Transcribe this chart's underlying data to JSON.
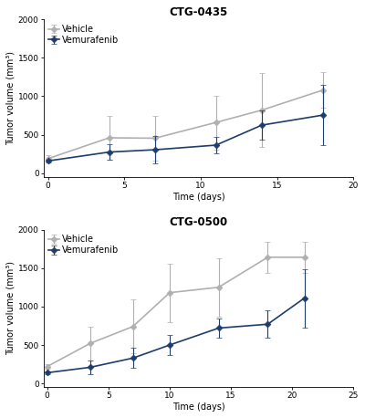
{
  "plot1": {
    "title": "CTG-0435",
    "vehicle": {
      "x": [
        0,
        4,
        7,
        11,
        14,
        18
      ],
      "y": [
        190,
        460,
        455,
        660,
        820,
        1080
      ],
      "yerr": [
        40,
        280,
        290,
        350,
        480,
        230
      ]
    },
    "vemurafenib": {
      "x": [
        0,
        4,
        7,
        11,
        14,
        18
      ],
      "y": [
        160,
        275,
        305,
        365,
        625,
        755
      ],
      "yerr": [
        20,
        100,
        180,
        110,
        190,
        390
      ]
    },
    "xlim": [
      -0.3,
      20
    ],
    "ylim": [
      -50,
      2000
    ],
    "xticks": [
      0,
      5,
      10,
      15,
      20
    ],
    "yticks": [
      0,
      500,
      1000,
      1500,
      2000
    ],
    "xlabel": "Time (days)",
    "ylabel": "Tumor volume (mm³)"
  },
  "plot2": {
    "title": "CTG-0500",
    "vehicle": {
      "x": [
        0,
        3.5,
        7,
        10,
        14,
        18,
        21
      ],
      "y": [
        220,
        520,
        740,
        1180,
        1250,
        1640,
        1640
      ],
      "yerr": [
        30,
        220,
        350,
        380,
        380,
        200,
        200
      ]
    },
    "vemurafenib": {
      "x": [
        0,
        3.5,
        7,
        10,
        14,
        18,
        21
      ],
      "y": [
        140,
        210,
        330,
        500,
        720,
        770,
        1110
      ],
      "yerr": [
        20,
        90,
        130,
        130,
        130,
        180,
        380
      ]
    },
    "xlim": [
      -0.3,
      25
    ],
    "ylim": [
      -50,
      2000
    ],
    "xticks": [
      0,
      5,
      10,
      15,
      20,
      25
    ],
    "yticks": [
      0,
      500,
      1000,
      1500,
      2000
    ],
    "xlabel": "Time (days)",
    "ylabel": "Tumor volume (mm³)"
  },
  "vehicle_color": "#b0b0b0",
  "vemurafenib_color": "#1d3d6b",
  "background_color": "#ffffff",
  "legend_labels": [
    "Vehicle",
    "Vemurafenib"
  ],
  "linewidth": 1.2,
  "markersize": 3.5,
  "capsize": 2.5,
  "elinewidth": 0.8,
  "title_fontsize": 8.5,
  "label_fontsize": 7,
  "tick_fontsize": 6.5,
  "legend_fontsize": 7
}
